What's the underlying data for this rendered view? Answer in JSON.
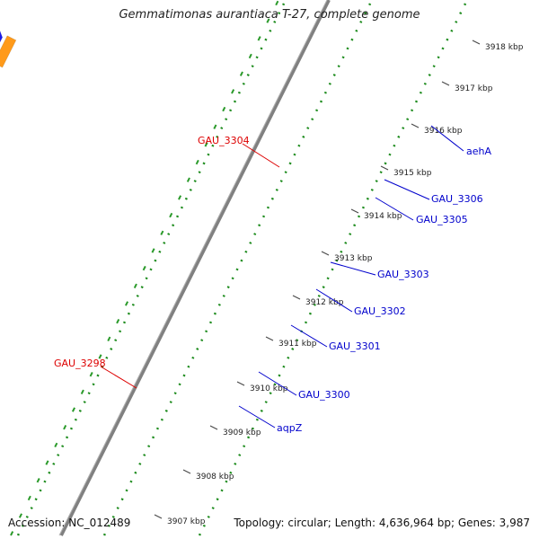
{
  "title": "Gemmatimonas aurantiaca T-27, complete genome",
  "footer": {
    "accession": "Accession: NC_012489",
    "summary": "Topology: circular; Length: 4,636,964 bp; Genes: 3,987"
  },
  "colors": {
    "backbone": "#808080",
    "dots": "#1e8c1e",
    "blue": "#1a1aee",
    "red": "#ee1a1a",
    "orange": "#ff9a1a",
    "cyan": "#22cccc",
    "gray": "#cccccc",
    "navy": "#4a4a8a",
    "label_blue": "#0000cc",
    "label_red": "#dd0000"
  },
  "ticks": [
    {
      "label": "3907 kbp"
    },
    {
      "label": "3908 kbp"
    },
    {
      "label": "3909 kbp"
    },
    {
      "label": "3910 kbp"
    },
    {
      "label": "3911 kbp"
    },
    {
      "label": "3912 kbp"
    },
    {
      "label": "3913 kbp"
    },
    {
      "label": "3914 kbp"
    },
    {
      "label": "3915 kbp"
    },
    {
      "label": "3916 kbp"
    },
    {
      "label": "3917 kbp"
    },
    {
      "label": "3918 kbp"
    }
  ],
  "gene_labels": [
    {
      "text": "aehA",
      "color": "blue"
    },
    {
      "text": "GAU_3306",
      "color": "blue"
    },
    {
      "text": "GAU_3305",
      "color": "blue"
    },
    {
      "text": "GAU_3304",
      "color": "red"
    },
    {
      "text": "GAU_3303",
      "color": "blue"
    },
    {
      "text": "GAU_3302",
      "color": "blue"
    },
    {
      "text": "GAU_3301",
      "color": "blue"
    },
    {
      "text": "GAU_3300",
      "color": "blue"
    },
    {
      "text": "GAU_3298",
      "color": "red"
    },
    {
      "text": "aqpZ",
      "color": "blue"
    }
  ],
  "features": [
    {
      "color": "red"
    },
    {
      "color": "blue"
    },
    {
      "color": "blue"
    },
    {
      "color": "blue"
    },
    {
      "color": "cyan"
    },
    {
      "color": "blue"
    },
    {
      "color": "blue"
    },
    {
      "color": "blue"
    },
    {
      "color": "navy"
    },
    {
      "color": "gray"
    },
    {
      "color": "orange"
    },
    {
      "color": "blue"
    },
    {
      "color": "blue"
    },
    {
      "color": "blue"
    },
    {
      "color": "cyan"
    },
    {
      "color": "red"
    },
    {
      "color": "blue"
    },
    {
      "color": "orange"
    },
    {
      "color": "orange"
    },
    {
      "color": "red"
    },
    {
      "color": "gray"
    },
    {
      "color": "gray"
    },
    {
      "color": "red"
    }
  ]
}
